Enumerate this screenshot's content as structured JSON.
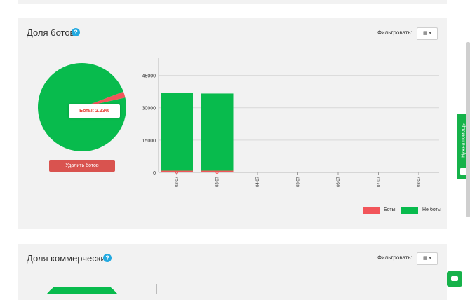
{
  "panel1": {
    "title": "Доля ботов",
    "help_glyph": "?",
    "filter_label": "Фильтровать:",
    "filter_icon": "calendar-icon",
    "filter_caret": "▾",
    "pie": {
      "slices": [
        {
          "name": "Боты",
          "value": 2.23,
          "color": "#f2555a"
        },
        {
          "name": "Не боты",
          "value": 97.77,
          "color": "#08bb4d"
        }
      ]
    },
    "tooltip": "Боты: 2.23%",
    "delete_button": "Удалить ботов"
  },
  "chart_data": {
    "type": "bar",
    "categories": [
      "02.07",
      "03.07",
      "04.07",
      "05.07",
      "06.07",
      "07.07",
      "08.07"
    ],
    "y_ticks": [
      "0",
      "15000",
      "30000",
      "45000"
    ],
    "ylim": [
      0,
      53000
    ],
    "series": [
      {
        "name": "Боты",
        "color": "#f2555a",
        "values": [
          800,
          800,
          0,
          0,
          0,
          0,
          0
        ]
      },
      {
        "name": "Не боты",
        "color": "#08bb4d",
        "values": [
          36000,
          35800,
          0,
          0,
          0,
          0,
          0
        ]
      }
    ],
    "legend_position": "bottom-right",
    "grid": true
  },
  "panel2": {
    "title": "Доля коммерческих",
    "help_glyph": "?",
    "filter_label": "Фильтровать:",
    "filter_icon": "calendar-icon",
    "filter_caret": "▾"
  },
  "side_tab": {
    "label": "Нужна помощь",
    "icon": "envelope-icon",
    "color": "#16b24a"
  },
  "chat_button": {
    "icon": "chat-bubble-icon"
  }
}
